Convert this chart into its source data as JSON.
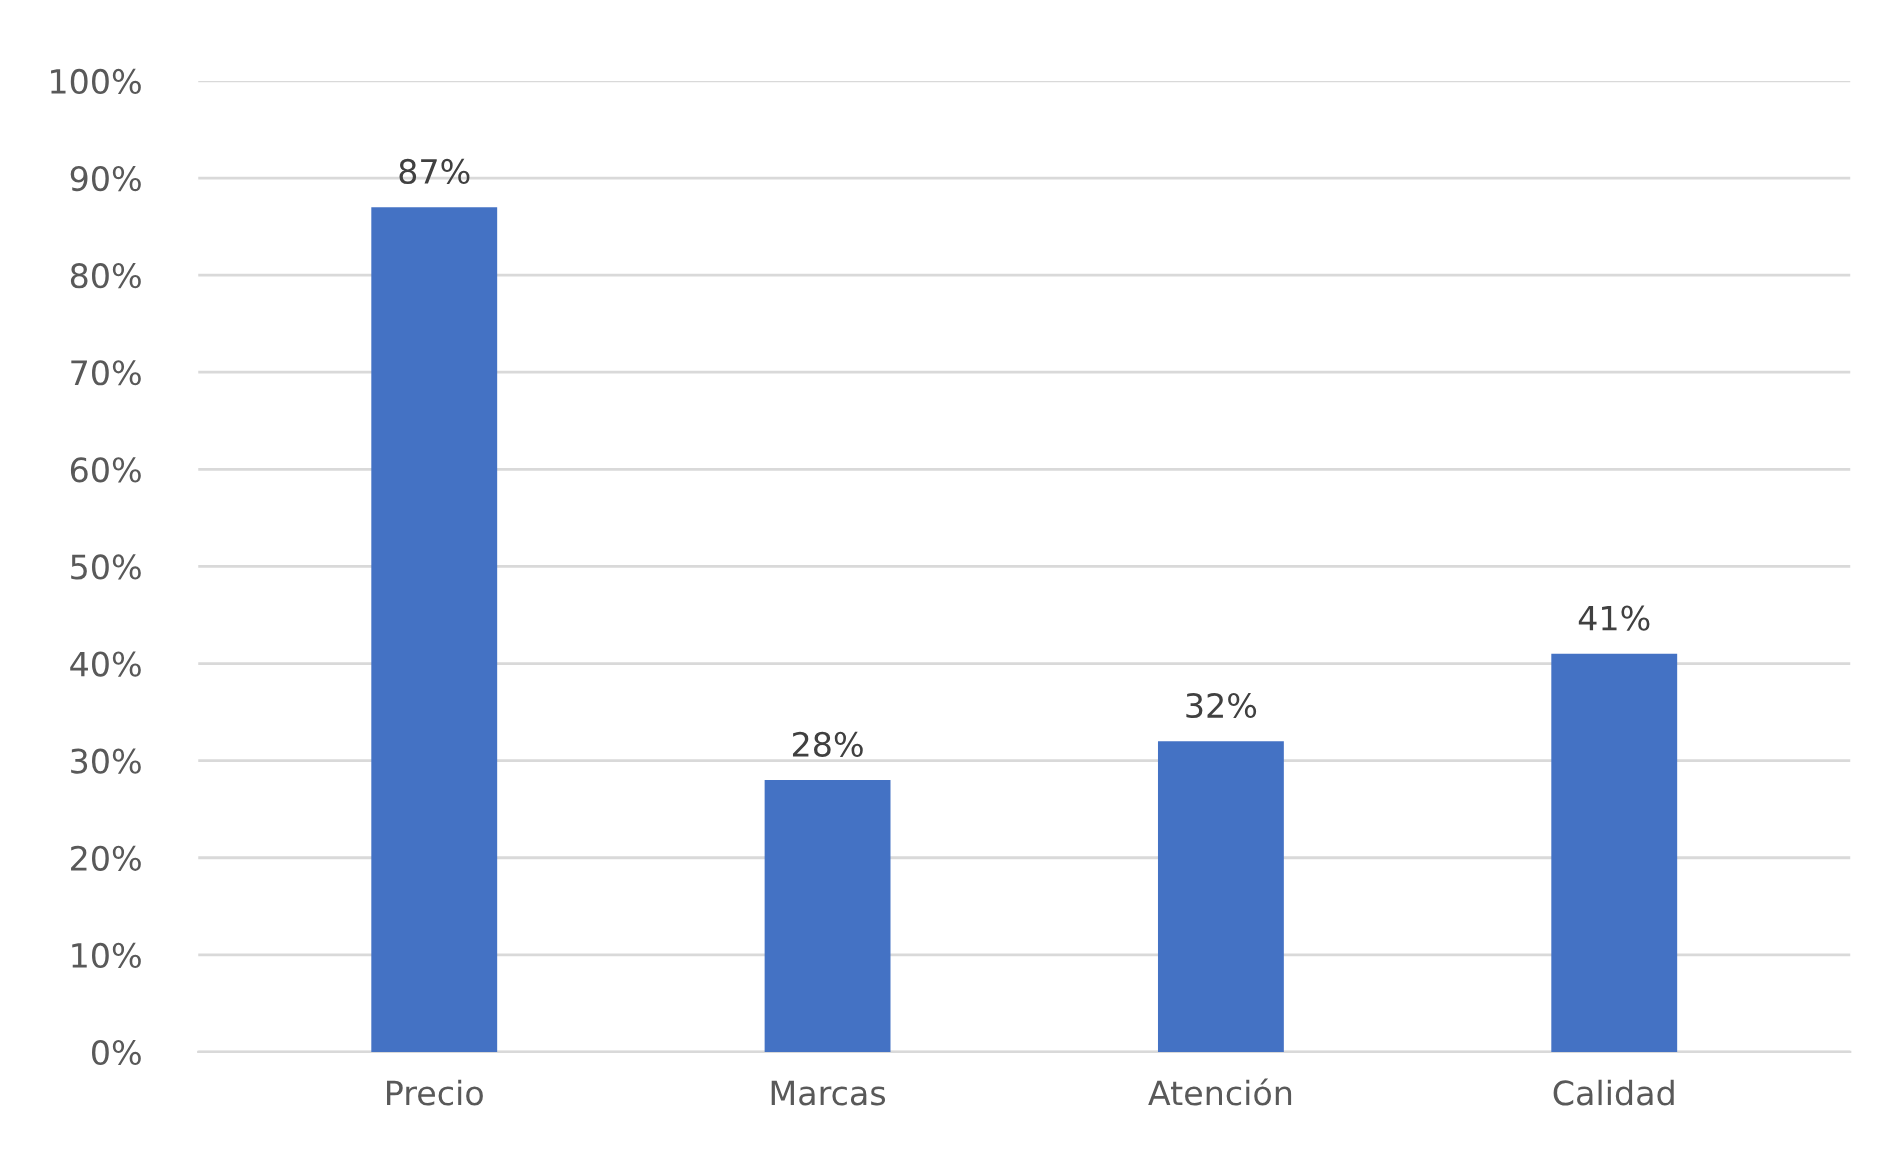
{
  "chart_data": {
    "type": "bar",
    "categories": [
      "Precio",
      "Marcas",
      "Atención",
      "Calidad"
    ],
    "values": [
      87,
      28,
      32,
      41
    ],
    "color": "#4472c4",
    "value_labels": [
      "87%",
      "28%",
      "32%",
      "41%"
    ],
    "ylim": [
      0,
      100
    ],
    "yticks": [
      {
        "value": 0,
        "label": "0%"
      },
      {
        "value": 10,
        "label": "10%"
      },
      {
        "value": 20,
        "label": "20%"
      },
      {
        "value": 30,
        "label": "30%"
      },
      {
        "value": 40,
        "label": "40%"
      },
      {
        "value": 50,
        "label": "50%"
      },
      {
        "value": 60,
        "label": "60%"
      },
      {
        "value": 70,
        "label": "70%"
      },
      {
        "value": 80,
        "label": "80%"
      },
      {
        "value": 90,
        "label": "90%"
      },
      {
        "value": 100,
        "label": "100%"
      }
    ],
    "grid": "y"
  }
}
